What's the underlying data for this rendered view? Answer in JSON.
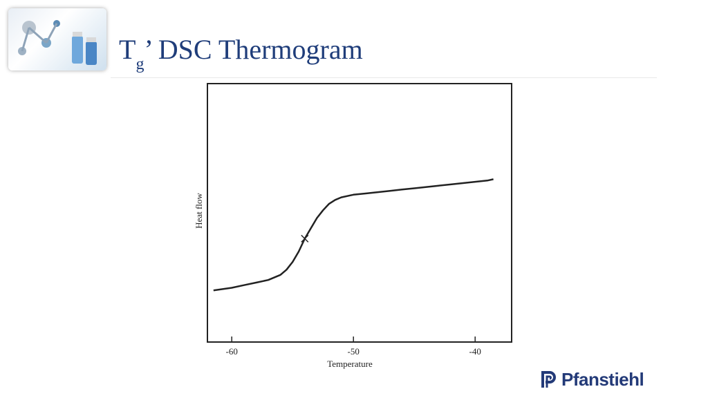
{
  "slide": {
    "title_main": "T",
    "title_sub": "g",
    "title_rest": "’ DSC Thermogram"
  },
  "logo": {
    "text": "Pfanstiehl",
    "color": "#233a78"
  },
  "chart_data": {
    "type": "line",
    "title": "",
    "xlabel": "Temperature",
    "ylabel": "Heat flow",
    "xlim": [
      -62,
      -37
    ],
    "ylim": [
      0,
      1
    ],
    "xticks": [
      -60,
      -50,
      -40
    ],
    "xtick_labels": [
      "-60",
      "-50",
      "-40"
    ],
    "grid": false,
    "series": [
      {
        "x": [
          -61.5,
          -60,
          -59,
          -58,
          -57,
          -56,
          -55.5,
          -55,
          -54.5,
          -54,
          -53.5,
          -53,
          -52.5,
          -52,
          -51.5,
          -51,
          -50,
          -49,
          -48,
          -47,
          -46,
          -45,
          -44,
          -43,
          -42,
          -41,
          -40,
          -39,
          -38.5
        ],
        "y": [
          0.2,
          0.21,
          0.22,
          0.23,
          0.24,
          0.26,
          0.28,
          0.31,
          0.35,
          0.4,
          0.44,
          0.48,
          0.51,
          0.535,
          0.55,
          0.56,
          0.57,
          0.575,
          0.58,
          0.585,
          0.59,
          0.595,
          0.6,
          0.605,
          0.61,
          0.615,
          0.62,
          0.625,
          0.63
        ]
      }
    ],
    "annotations": [
      {
        "x": -54,
        "y": 0.4,
        "label": ""
      }
    ]
  }
}
